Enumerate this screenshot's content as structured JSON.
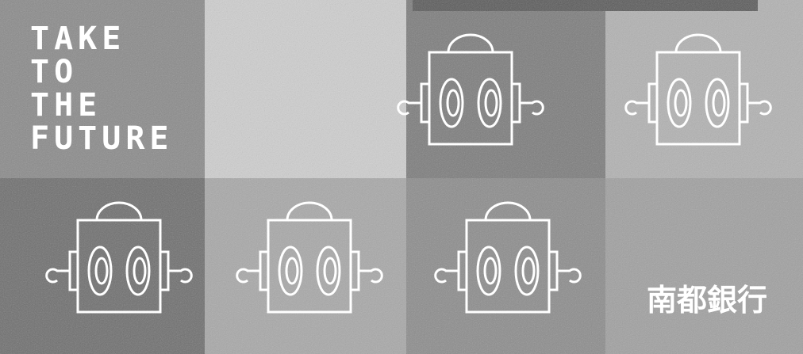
{
  "slogan": {
    "lines": [
      "TAKE",
      "TO",
      "THE",
      "FUTURE"
    ]
  },
  "brand": {
    "name": "南都銀行"
  }
}
